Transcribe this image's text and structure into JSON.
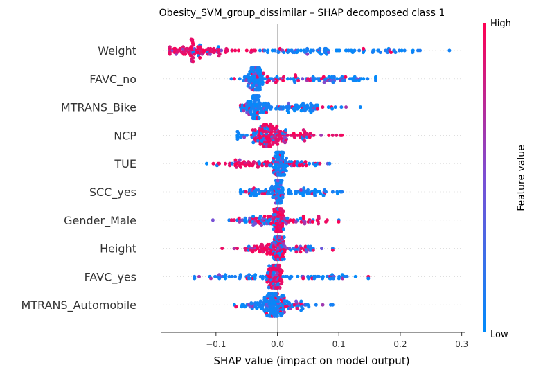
{
  "chart_data": {
    "type": "scatter",
    "subtype": "shap-beeswarm",
    "title": "Obesity_SVM_group_dissimilar – SHAP decomposed class 1",
    "xlabel": "SHAP value (impact on model output)",
    "ylabel": "",
    "xlim": [
      -0.19,
      0.3
    ],
    "xticks": [
      -0.1,
      0.0,
      0.1,
      0.2,
      0.3
    ],
    "xtick_labels": [
      "−0.1",
      "0.0",
      "0.1",
      "0.2",
      "0.3"
    ],
    "colorbar": {
      "label": "Feature value",
      "high_label": "High",
      "low_label": "Low",
      "high_color": "#ff0052",
      "low_color": "#008bfb"
    },
    "features": [
      {
        "name": "Weight",
        "range": [
          -0.175,
          0.28
        ],
        "modes": [
          [
            -0.13,
            0.022,
            0.42,
            "high"
          ],
          [
            -0.08,
            0.03,
            0.13,
            "high"
          ],
          [
            0.06,
            0.045,
            0.3,
            "low"
          ],
          [
            0.18,
            0.05,
            0.15,
            "low"
          ]
        ]
      },
      {
        "name": "FAVC_no",
        "range": [
          -0.075,
          0.16
        ],
        "modes": [
          [
            -0.037,
            0.008,
            0.5,
            "low"
          ],
          [
            0.03,
            0.04,
            0.35,
            "mix"
          ],
          [
            0.11,
            0.03,
            0.15,
            "low"
          ]
        ]
      },
      {
        "name": "MTRANS_Bike",
        "range": [
          -0.06,
          0.135
        ],
        "modes": [
          [
            -0.035,
            0.01,
            0.6,
            "low"
          ],
          [
            0.04,
            0.04,
            0.4,
            "low"
          ]
        ]
      },
      {
        "name": "NCP",
        "range": [
          -0.065,
          0.105
        ],
        "modes": [
          [
            -0.015,
            0.012,
            0.55,
            "high"
          ],
          [
            0.03,
            0.03,
            0.3,
            "high"
          ],
          [
            -0.04,
            0.015,
            0.15,
            "low"
          ]
        ]
      },
      {
        "name": "TUE",
        "range": [
          -0.115,
          0.085
        ],
        "modes": [
          [
            0.005,
            0.006,
            0.45,
            "low"
          ],
          [
            -0.04,
            0.03,
            0.35,
            "high"
          ],
          [
            0.04,
            0.02,
            0.2,
            "mix"
          ]
        ]
      },
      {
        "name": "SCC_yes",
        "range": [
          -0.06,
          0.105
        ],
        "modes": [
          [
            0.002,
            0.004,
            0.55,
            "low"
          ],
          [
            -0.03,
            0.018,
            0.25,
            "low"
          ],
          [
            0.05,
            0.025,
            0.2,
            "low"
          ]
        ]
      },
      {
        "name": "Gender_Male",
        "range": [
          -0.105,
          0.1
        ],
        "modes": [
          [
            0.003,
            0.005,
            0.5,
            "high"
          ],
          [
            -0.03,
            0.02,
            0.3,
            "mix"
          ],
          [
            0.04,
            0.025,
            0.2,
            "high"
          ]
        ]
      },
      {
        "name": "Height",
        "range": [
          -0.09,
          0.09
        ],
        "modes": [
          [
            0.002,
            0.005,
            0.5,
            "mix"
          ],
          [
            -0.03,
            0.02,
            0.3,
            "high"
          ],
          [
            0.04,
            0.025,
            0.2,
            "mix"
          ]
        ]
      },
      {
        "name": "FAVC_yes",
        "range": [
          -0.135,
          0.148
        ],
        "modes": [
          [
            -0.003,
            0.006,
            0.65,
            "high"
          ],
          [
            -0.05,
            0.035,
            0.15,
            "low"
          ],
          [
            0.06,
            0.04,
            0.2,
            "low"
          ]
        ]
      },
      {
        "name": "MTRANS_Automobile",
        "range": [
          -0.07,
          0.09
        ],
        "modes": [
          [
            -0.005,
            0.01,
            0.6,
            "low"
          ],
          [
            -0.035,
            0.015,
            0.2,
            "low"
          ],
          [
            0.03,
            0.02,
            0.2,
            "mix"
          ]
        ]
      }
    ]
  }
}
